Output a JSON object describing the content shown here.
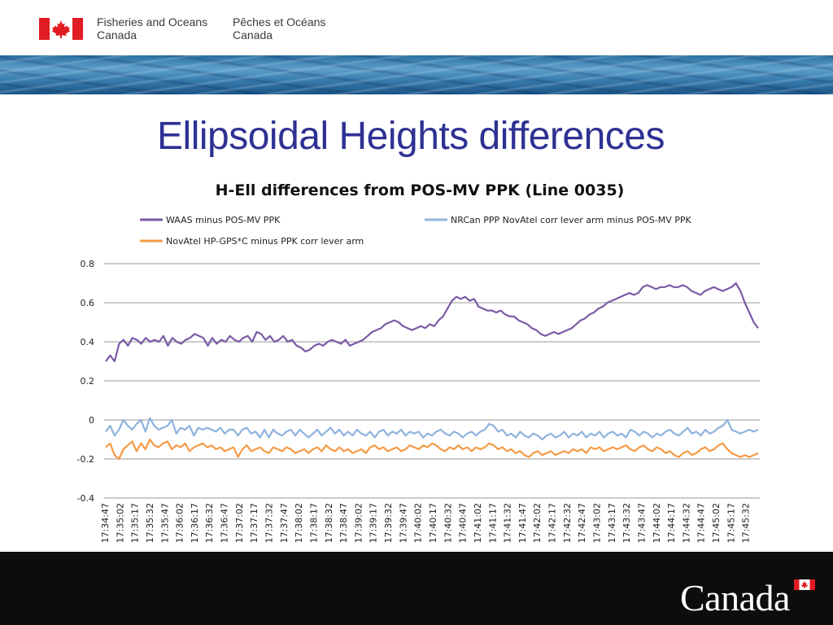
{
  "header": {
    "department_en": [
      "Fisheries and Oceans",
      "Canada"
    ],
    "department_fr": [
      "Pêches et Océans",
      "Canada"
    ]
  },
  "slide": {
    "title": "Ellipsoidal Heights differences"
  },
  "footer": {
    "wordmark": "Canada"
  },
  "colors": {
    "title": "#2e3192",
    "waas": "#7b5aa6",
    "nrcan": "#8eb3dd",
    "novatel": "#f59a45"
  },
  "chart_data": {
    "type": "line",
    "title": "H-Ell differences from POS-MV PPK (Line 0035)",
    "ylim": [
      -0.4,
      0.8
    ],
    "yticks": [
      "0.8",
      "0.6",
      "0.4",
      "0.2",
      "0",
      "-0.2",
      "-0.4"
    ],
    "y_tick_values": [
      0.8,
      0.6,
      0.4,
      0.2,
      0,
      -0.2,
      -0.4
    ],
    "grid": true,
    "legend_position": "top",
    "x_tick_labels": [
      "17:34:47",
      "17:35:02",
      "17:35:17",
      "17:35:32",
      "17:35:47",
      "17:36:02",
      "17:36:17",
      "17:36:32",
      "17:36:47",
      "17:37:02",
      "17:37:17",
      "17:37:32",
      "17:37:47",
      "17:38:02",
      "17:38:17",
      "17:38:32",
      "17:38:47",
      "17:39:02",
      "17:39:17",
      "17:39:32",
      "17:39:47",
      "17:40:02",
      "17:40:17",
      "17:40:32",
      "17:40:47",
      "17:41:02",
      "17:41:17",
      "17:41:32",
      "17:41:47",
      "17:42:02",
      "17:42:17",
      "17:42:32",
      "17:42:47",
      "17:43:02",
      "17:43:17",
      "17:43:32",
      "17:43:47",
      "17:44:02",
      "17:44:17",
      "17:44:32",
      "17:44:47",
      "17:45:02",
      "17:45:17",
      "17:45:32"
    ],
    "series": [
      {
        "name": "WAAS minus POS-MV PPK",
        "color": "#7b5aa6",
        "values": [
          0.3,
          0.33,
          0.3,
          0.39,
          0.41,
          0.38,
          0.42,
          0.41,
          0.39,
          0.42,
          0.4,
          0.41,
          0.4,
          0.43,
          0.38,
          0.42,
          0.4,
          0.39,
          0.41,
          0.42,
          0.44,
          0.43,
          0.42,
          0.38,
          0.42,
          0.39,
          0.41,
          0.4,
          0.43,
          0.41,
          0.4,
          0.42,
          0.43,
          0.4,
          0.45,
          0.44,
          0.41,
          0.43,
          0.4,
          0.41,
          0.43,
          0.4,
          0.41,
          0.38,
          0.37,
          0.35,
          0.36,
          0.38,
          0.39,
          0.38,
          0.4,
          0.41,
          0.4,
          0.39,
          0.41,
          0.38,
          0.39,
          0.4,
          0.41,
          0.43,
          0.45,
          0.46,
          0.47,
          0.49,
          0.5,
          0.51,
          0.5,
          0.48,
          0.47,
          0.46,
          0.47,
          0.48,
          0.47,
          0.49,
          0.48,
          0.51,
          0.53,
          0.57,
          0.61,
          0.63,
          0.62,
          0.63,
          0.61,
          0.62,
          0.58,
          0.57,
          0.56,
          0.56,
          0.55,
          0.56,
          0.54,
          0.53,
          0.53,
          0.51,
          0.5,
          0.49,
          0.47,
          0.46,
          0.44,
          0.43,
          0.44,
          0.45,
          0.44,
          0.45,
          0.46,
          0.47,
          0.49,
          0.51,
          0.52,
          0.54,
          0.55,
          0.57,
          0.58,
          0.6,
          0.61,
          0.62,
          0.63,
          0.64,
          0.65,
          0.64,
          0.65,
          0.68,
          0.69,
          0.68,
          0.67,
          0.68,
          0.68,
          0.69,
          0.68,
          0.68,
          0.69,
          0.68,
          0.66,
          0.65,
          0.64,
          0.66,
          0.67,
          0.68,
          0.67,
          0.66,
          0.67,
          0.68,
          0.7,
          0.66,
          0.6,
          0.55,
          0.5,
          0.47
        ]
      },
      {
        "name": "NRCan PPP NovAtel corr lever arm minus POS-MV PPK",
        "color": "#8eb3dd",
        "values": [
          -0.06,
          -0.03,
          -0.08,
          -0.05,
          0.0,
          -0.03,
          -0.05,
          -0.02,
          0.0,
          -0.06,
          0.01,
          -0.03,
          -0.05,
          -0.04,
          -0.03,
          0.0,
          -0.07,
          -0.04,
          -0.05,
          -0.03,
          -0.08,
          -0.04,
          -0.05,
          -0.04,
          -0.05,
          -0.06,
          -0.04,
          -0.07,
          -0.05,
          -0.05,
          -0.08,
          -0.05,
          -0.04,
          -0.07,
          -0.06,
          -0.09,
          -0.05,
          -0.09,
          -0.05,
          -0.07,
          -0.08,
          -0.06,
          -0.05,
          -0.08,
          -0.05,
          -0.07,
          -0.09,
          -0.07,
          -0.05,
          -0.08,
          -0.06,
          -0.04,
          -0.07,
          -0.05,
          -0.08,
          -0.06,
          -0.08,
          -0.05,
          -0.07,
          -0.08,
          -0.06,
          -0.09,
          -0.06,
          -0.05,
          -0.08,
          -0.06,
          -0.07,
          -0.05,
          -0.08,
          -0.06,
          -0.07,
          -0.06,
          -0.09,
          -0.07,
          -0.08,
          -0.06,
          -0.05,
          -0.07,
          -0.08,
          -0.06,
          -0.07,
          -0.09,
          -0.07,
          -0.06,
          -0.08,
          -0.06,
          -0.05,
          -0.02,
          -0.03,
          -0.06,
          -0.05,
          -0.08,
          -0.07,
          -0.09,
          -0.06,
          -0.08,
          -0.09,
          -0.07,
          -0.08,
          -0.1,
          -0.08,
          -0.07,
          -0.09,
          -0.08,
          -0.06,
          -0.09,
          -0.07,
          -0.08,
          -0.06,
          -0.09,
          -0.07,
          -0.08,
          -0.06,
          -0.09,
          -0.07,
          -0.06,
          -0.08,
          -0.07,
          -0.09,
          -0.05,
          -0.06,
          -0.08,
          -0.06,
          -0.07,
          -0.09,
          -0.07,
          -0.08,
          -0.06,
          -0.05,
          -0.07,
          -0.08,
          -0.06,
          -0.04,
          -0.07,
          -0.06,
          -0.08,
          -0.05,
          -0.07,
          -0.06,
          -0.04,
          -0.03,
          0.0,
          -0.05,
          -0.06,
          -0.07,
          -0.06,
          -0.05,
          -0.06,
          -0.05
        ]
      },
      {
        "name": "NovAtel HP-GPS*C minus PPK corr lever arm",
        "color": "#f59a45",
        "values": [
          -0.14,
          -0.12,
          -0.18,
          -0.2,
          -0.15,
          -0.13,
          -0.11,
          -0.16,
          -0.12,
          -0.15,
          -0.1,
          -0.13,
          -0.14,
          -0.12,
          -0.11,
          -0.15,
          -0.13,
          -0.14,
          -0.12,
          -0.16,
          -0.14,
          -0.13,
          -0.12,
          -0.14,
          -0.13,
          -0.15,
          -0.14,
          -0.16,
          -0.15,
          -0.14,
          -0.19,
          -0.15,
          -0.13,
          -0.16,
          -0.15,
          -0.14,
          -0.16,
          -0.17,
          -0.14,
          -0.15,
          -0.16,
          -0.14,
          -0.15,
          -0.17,
          -0.16,
          -0.15,
          -0.17,
          -0.15,
          -0.14,
          -0.16,
          -0.13,
          -0.15,
          -0.16,
          -0.14,
          -0.16,
          -0.15,
          -0.17,
          -0.16,
          -0.15,
          -0.17,
          -0.14,
          -0.13,
          -0.15,
          -0.14,
          -0.16,
          -0.15,
          -0.14,
          -0.16,
          -0.15,
          -0.13,
          -0.14,
          -0.15,
          -0.13,
          -0.14,
          -0.12,
          -0.13,
          -0.15,
          -0.16,
          -0.14,
          -0.15,
          -0.13,
          -0.15,
          -0.14,
          -0.16,
          -0.14,
          -0.15,
          -0.14,
          -0.12,
          -0.13,
          -0.15,
          -0.14,
          -0.16,
          -0.15,
          -0.17,
          -0.16,
          -0.18,
          -0.19,
          -0.17,
          -0.16,
          -0.18,
          -0.17,
          -0.16,
          -0.18,
          -0.17,
          -0.16,
          -0.17,
          -0.15,
          -0.16,
          -0.15,
          -0.17,
          -0.14,
          -0.15,
          -0.14,
          -0.16,
          -0.15,
          -0.14,
          -0.15,
          -0.14,
          -0.13,
          -0.15,
          -0.16,
          -0.14,
          -0.13,
          -0.15,
          -0.16,
          -0.14,
          -0.15,
          -0.17,
          -0.16,
          -0.18,
          -0.19,
          -0.17,
          -0.16,
          -0.18,
          -0.17,
          -0.15,
          -0.14,
          -0.16,
          -0.15,
          -0.13,
          -0.12,
          -0.15,
          -0.17,
          -0.18,
          -0.19,
          -0.18,
          -0.19,
          -0.18,
          -0.17
        ]
      }
    ]
  }
}
